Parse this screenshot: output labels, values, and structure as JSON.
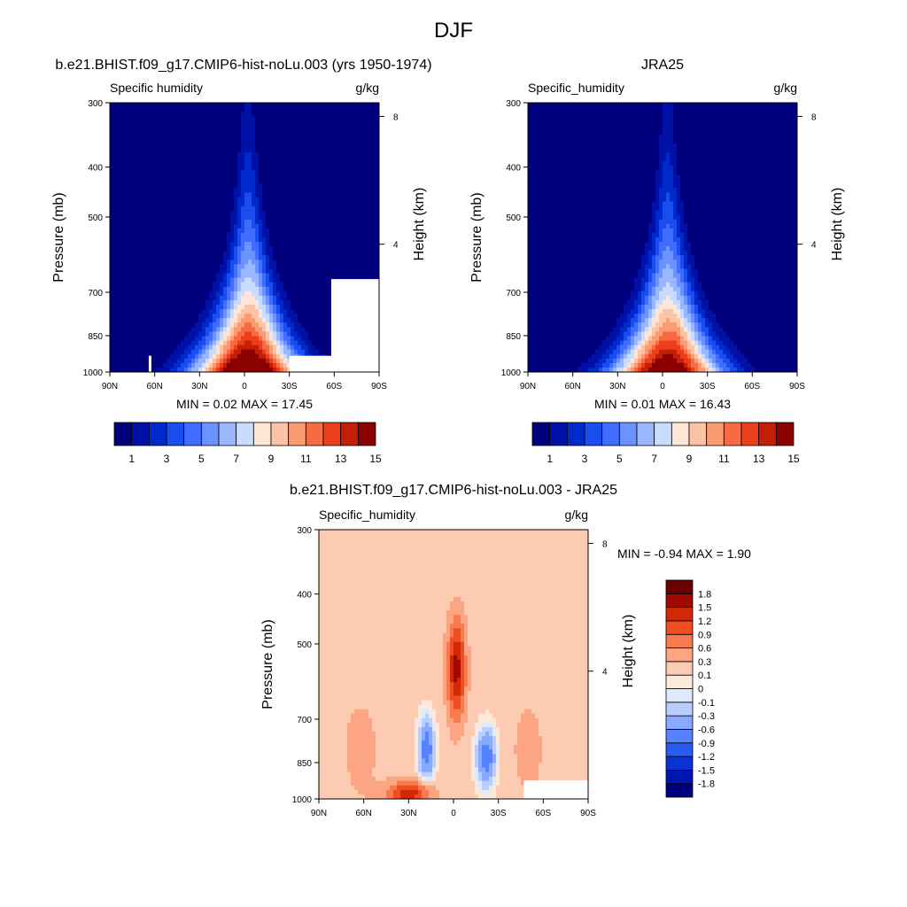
{
  "figure_title": "DJF",
  "chart_data": [
    {
      "type": "heatmap",
      "panel_title": "b.e21.BHIST.f09_g17.CMIP6-hist-noLu.003 (yrs 1950-1974)",
      "left_label": "Specific humidity",
      "right_label": "g/kg",
      "ylabel": "Pressure (mb)",
      "ylabel_right": "Height (km)",
      "x_ticks": [
        "90N",
        "60N",
        "30N",
        "0",
        "30S",
        "60S",
        "90S"
      ],
      "y_ticks": [
        "300",
        "400",
        "500",
        "700",
        "850",
        "1000"
      ],
      "y_ticks_right": [
        "8",
        "4"
      ],
      "xlim": [
        90,
        -90
      ],
      "ylim": [
        1000,
        300
      ],
      "y_scale": "log",
      "stats_text": "MIN =   0.02  MAX =  17.45",
      "min": 0.02,
      "max": 17.45,
      "peak_lat": -2,
      "peak_value": 17.45,
      "colorbar": {
        "orientation": "horizontal",
        "levels": [
          1,
          2,
          3,
          4,
          5,
          6,
          7,
          8,
          9,
          10,
          11,
          12,
          13,
          14,
          15
        ],
        "labels": [
          "1",
          "3",
          "5",
          "7",
          "9",
          "11",
          "13",
          "15"
        ],
        "colors": [
          "#00007f",
          "#0011a8",
          "#0029cc",
          "#1a4df0",
          "#406dff",
          "#6b93ff",
          "#99b6ff",
          "#c9dcff",
          "#fde6d5",
          "#fcc4a6",
          "#fb9b73",
          "#f86a42",
          "#eb3e1a",
          "#c41f06",
          "#8b0000"
        ]
      }
    },
    {
      "type": "heatmap",
      "panel_title": "JRA25",
      "left_label": "Specific_humidity",
      "right_label": "g/kg",
      "ylabel": "Pressure (mb)",
      "ylabel_right": "Height (km)",
      "x_ticks": [
        "90N",
        "60N",
        "30N",
        "0",
        "30S",
        "60S",
        "90S"
      ],
      "y_ticks": [
        "300",
        "400",
        "500",
        "700",
        "850",
        "1000"
      ],
      "y_ticks_right": [
        "8",
        "4"
      ],
      "xlim": [
        90,
        -90
      ],
      "ylim": [
        1000,
        300
      ],
      "y_scale": "log",
      "stats_text": "MIN =   0.01  MAX =  16.43",
      "min": 0.01,
      "max": 16.43,
      "peak_lat": -3,
      "peak_value": 16.43,
      "colorbar": {
        "orientation": "horizontal",
        "levels": [
          1,
          2,
          3,
          4,
          5,
          6,
          7,
          8,
          9,
          10,
          11,
          12,
          13,
          14,
          15
        ],
        "labels": [
          "1",
          "3",
          "5",
          "7",
          "9",
          "11",
          "13",
          "15"
        ],
        "colors": [
          "#00007f",
          "#0011a8",
          "#0029cc",
          "#1a4df0",
          "#406dff",
          "#6b93ff",
          "#99b6ff",
          "#c9dcff",
          "#fde6d5",
          "#fcc4a6",
          "#fb9b73",
          "#f86a42",
          "#eb3e1a",
          "#c41f06",
          "#8b0000"
        ]
      }
    },
    {
      "type": "heatmap",
      "panel_title": "b.e21.BHIST.f09_g17.CMIP6-hist-noLu.003 - JRA25",
      "left_label": "Specific_humidity",
      "right_label": "g/kg",
      "ylabel": "Pressure (mb)",
      "ylabel_right": "Height (km)",
      "x_ticks": [
        "90N",
        "60N",
        "30N",
        "0",
        "30S",
        "60S",
        "90S"
      ],
      "y_ticks": [
        "300",
        "400",
        "500",
        "700",
        "850",
        "1000"
      ],
      "y_ticks_right": [
        "8",
        "4"
      ],
      "xlim": [
        90,
        -90
      ],
      "ylim": [
        1000,
        300
      ],
      "y_scale": "log",
      "stats_text": "MIN =  -0.94  MAX =   1.90",
      "min": -0.94,
      "max": 1.9,
      "colorbar": {
        "orientation": "vertical",
        "levels": [
          -1.8,
          -1.5,
          -1.2,
          -0.9,
          -0.6,
          -0.3,
          -0.1,
          0,
          0.1,
          0.3,
          0.6,
          0.9,
          1.2,
          1.5,
          1.8
        ],
        "labels": [
          "-1.8",
          "-1.5",
          "-1.2",
          "-0.9",
          "-0.6",
          "-0.3",
          "-0.1",
          "0",
          "0.1",
          "0.3",
          "0.6",
          "0.9",
          "1.2",
          "1.5",
          "1.8"
        ],
        "colors": [
          "#00007f",
          "#0015b0",
          "#0a33d6",
          "#2a5cf2",
          "#5582ff",
          "#89a8ff",
          "#b9cdff",
          "#deebff",
          "#fde9da",
          "#fccbb2",
          "#fba582",
          "#f87a4f",
          "#f04e22",
          "#d12908",
          "#9e0a00",
          "#6b0000"
        ]
      }
    }
  ]
}
